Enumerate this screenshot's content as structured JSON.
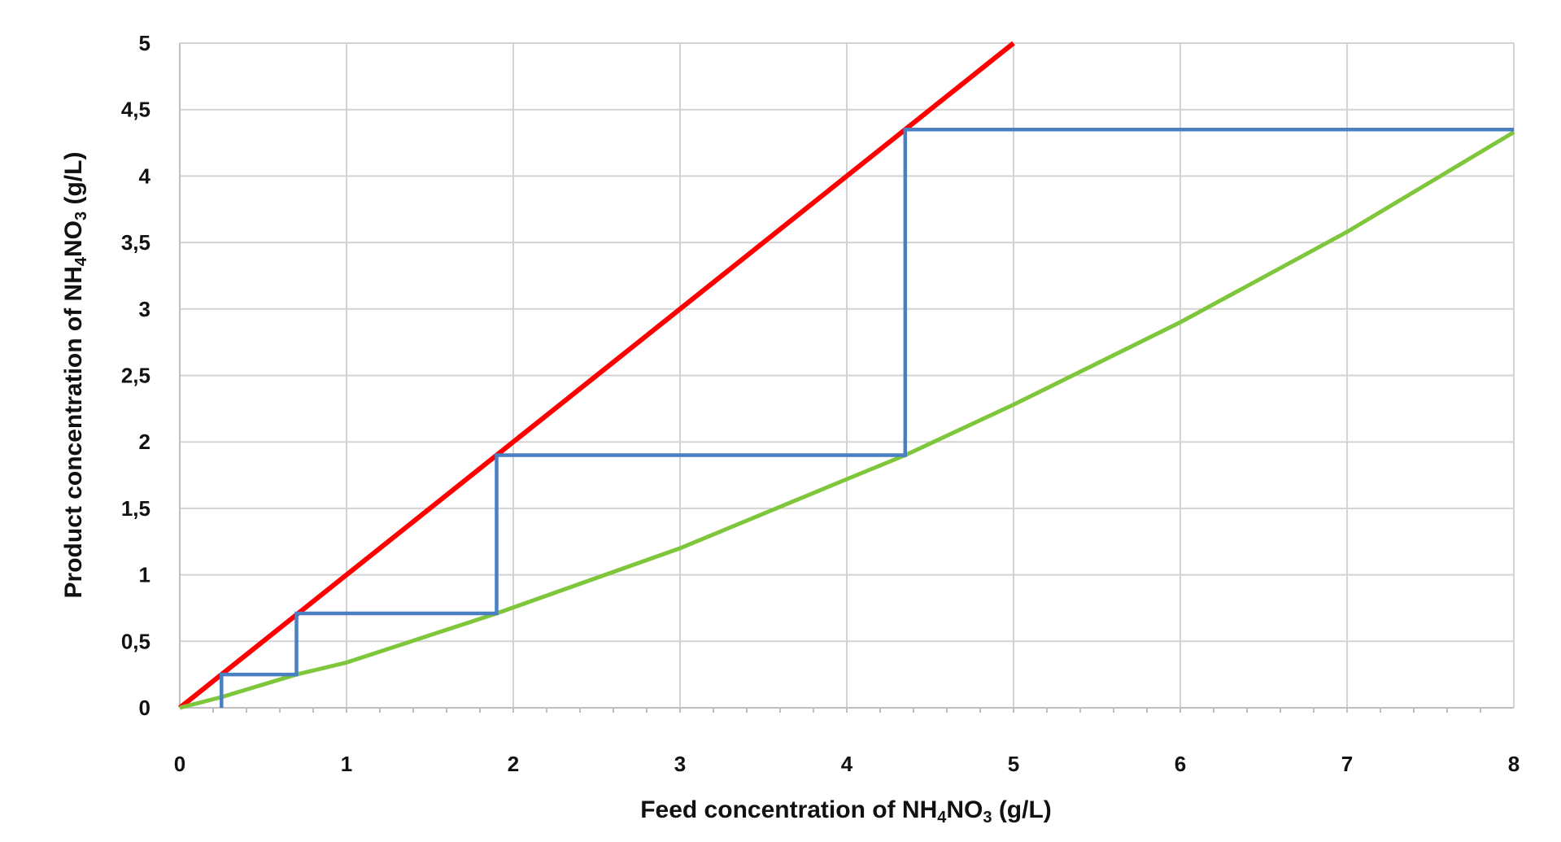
{
  "chart_data": {
    "type": "line",
    "title": "",
    "xlabel": {
      "prefix": "Feed concentration of NH",
      "sub1": "4",
      "mid": "NO",
      "sub2": "3",
      "suffix": " (g/L)"
    },
    "ylabel": {
      "prefix": "Product concentration of NH",
      "sub1": "4",
      "mid": "NO",
      "sub2": "3",
      "suffix": " (g/L)"
    },
    "xlim": [
      0,
      8
    ],
    "ylim": [
      0,
      5
    ],
    "x_ticks": [
      0,
      1,
      2,
      3,
      4,
      5,
      6,
      7,
      8
    ],
    "x_tick_labels": [
      "0",
      "1",
      "2",
      "3",
      "4",
      "5",
      "6",
      "7",
      "8"
    ],
    "y_ticks": [
      0,
      0.5,
      1,
      1.5,
      2,
      2.5,
      3,
      3.5,
      4,
      4.5,
      5
    ],
    "y_tick_labels": [
      "0",
      "0,5",
      "1",
      "1,5",
      "2",
      "2,5",
      "3",
      "3,5",
      "4",
      "4,5",
      "5"
    ],
    "x_minor_step": 0.2,
    "grid": true,
    "legend": "none",
    "colors": {
      "line_red": "#ff0000",
      "curve_green": "#7ec63a",
      "steps_blue": "#4a7fc1",
      "grid": "#d3d3d3"
    },
    "series": [
      {
        "color": "#ff0000",
        "x": [
          0,
          5
        ],
        "y": [
          0,
          5
        ]
      },
      {
        "color": "#7ec63a",
        "x": [
          0,
          0.25,
          0.7,
          1,
          1.9,
          3,
          4,
          4.35,
          5,
          6,
          7,
          8
        ],
        "y": [
          0,
          0.08,
          0.25,
          0.34,
          0.71,
          1.2,
          1.72,
          1.9,
          2.28,
          2.9,
          3.58,
          4.33
        ]
      },
      {
        "color": "#4a7fc1",
        "x": [
          8,
          4.35,
          4.35,
          1.9,
          1.9,
          0.7,
          0.7,
          0.25,
          0.25,
          0.25
        ],
        "y": [
          4.35,
          4.35,
          1.9,
          1.9,
          0.71,
          0.71,
          0.25,
          0.25,
          0.25,
          0
        ]
      }
    ]
  }
}
